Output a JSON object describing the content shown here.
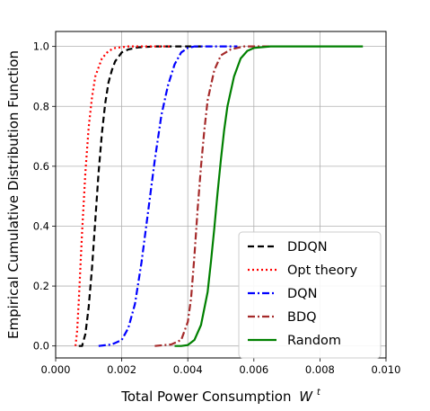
{
  "chart_data": {
    "type": "line",
    "xlabel": "Total Power Consumption",
    "xlabel_symbol": "W",
    "xlabel_superscript": "t",
    "ylabel": "Empirical Cumulative Distribution Function",
    "xlim": [
      0,
      0.01
    ],
    "ylim": [
      -0.04,
      1.05
    ],
    "x_ticks": [
      "0.000",
      "0.002",
      "0.004",
      "0.006",
      "0.008",
      "0.010"
    ],
    "y_ticks": [
      "0.0",
      "0.2",
      "0.4",
      "0.6",
      "0.8",
      "1.0"
    ],
    "grid": true,
    "legend_position": "lower right",
    "series": [
      {
        "name": "DDQN",
        "color": "#000000",
        "style": "dashed",
        "points": [
          [
            0.0007,
            0
          ],
          [
            0.0008,
            0.0
          ],
          [
            0.0009,
            0.04
          ],
          [
            0.001,
            0.13
          ],
          [
            0.0011,
            0.26
          ],
          [
            0.0012,
            0.42
          ],
          [
            0.0013,
            0.58
          ],
          [
            0.0014,
            0.71
          ],
          [
            0.0015,
            0.81
          ],
          [
            0.0016,
            0.88
          ],
          [
            0.0017,
            0.92
          ],
          [
            0.0018,
            0.95
          ],
          [
            0.002,
            0.98
          ],
          [
            0.0022,
            0.99
          ],
          [
            0.0025,
            0.997
          ],
          [
            0.003,
            1.0
          ],
          [
            0.0045,
            1.0
          ]
        ]
      },
      {
        "name": "Opt theory",
        "color": "#ff0000",
        "style": "dotted",
        "points": [
          [
            0.0006,
            0
          ],
          [
            0.00065,
            0.05
          ],
          [
            0.0007,
            0.15
          ],
          [
            0.0008,
            0.38
          ],
          [
            0.0009,
            0.58
          ],
          [
            0.001,
            0.73
          ],
          [
            0.0011,
            0.83
          ],
          [
            0.0012,
            0.9
          ],
          [
            0.0014,
            0.96
          ],
          [
            0.0016,
            0.985
          ],
          [
            0.0018,
            0.995
          ],
          [
            0.0022,
            1.0
          ],
          [
            0.0035,
            1.0
          ]
        ]
      },
      {
        "name": "DQN",
        "color": "#0000ff",
        "style": "dashdot",
        "points": [
          [
            0.0013,
            0
          ],
          [
            0.0017,
            0.005
          ],
          [
            0.002,
            0.02
          ],
          [
            0.0022,
            0.06
          ],
          [
            0.0024,
            0.14
          ],
          [
            0.0026,
            0.28
          ],
          [
            0.0028,
            0.45
          ],
          [
            0.003,
            0.62
          ],
          [
            0.0032,
            0.77
          ],
          [
            0.0034,
            0.87
          ],
          [
            0.0036,
            0.94
          ],
          [
            0.0038,
            0.98
          ],
          [
            0.004,
            0.995
          ],
          [
            0.0042,
            1.0
          ],
          [
            0.0055,
            1.0
          ]
        ]
      },
      {
        "name": "BDQ",
        "color": "#a52a2a",
        "style": "dashdot",
        "points": [
          [
            0.003,
            0
          ],
          [
            0.0035,
            0.005
          ],
          [
            0.0038,
            0.02
          ],
          [
            0.004,
            0.08
          ],
          [
            0.0041,
            0.16
          ],
          [
            0.0042,
            0.3
          ],
          [
            0.0043,
            0.46
          ],
          [
            0.0044,
            0.6
          ],
          [
            0.0045,
            0.72
          ],
          [
            0.0046,
            0.82
          ],
          [
            0.0048,
            0.92
          ],
          [
            0.005,
            0.97
          ],
          [
            0.0053,
            0.99
          ],
          [
            0.0057,
            1.0
          ],
          [
            0.0065,
            1.0
          ]
        ]
      },
      {
        "name": "Random",
        "color": "#008000",
        "style": "solid",
        "points": [
          [
            0.0036,
            0
          ],
          [
            0.0038,
            0.0
          ],
          [
            0.004,
            0.003
          ],
          [
            0.0042,
            0.02
          ],
          [
            0.0044,
            0.07
          ],
          [
            0.0046,
            0.18
          ],
          [
            0.0047,
            0.28
          ],
          [
            0.0048,
            0.39
          ],
          [
            0.0049,
            0.51
          ],
          [
            0.005,
            0.62
          ],
          [
            0.0051,
            0.72
          ],
          [
            0.0052,
            0.8
          ],
          [
            0.0054,
            0.9
          ],
          [
            0.0056,
            0.96
          ],
          [
            0.0058,
            0.985
          ],
          [
            0.006,
            0.995
          ],
          [
            0.0065,
            1.0
          ],
          [
            0.0093,
            1.0
          ]
        ]
      }
    ]
  }
}
